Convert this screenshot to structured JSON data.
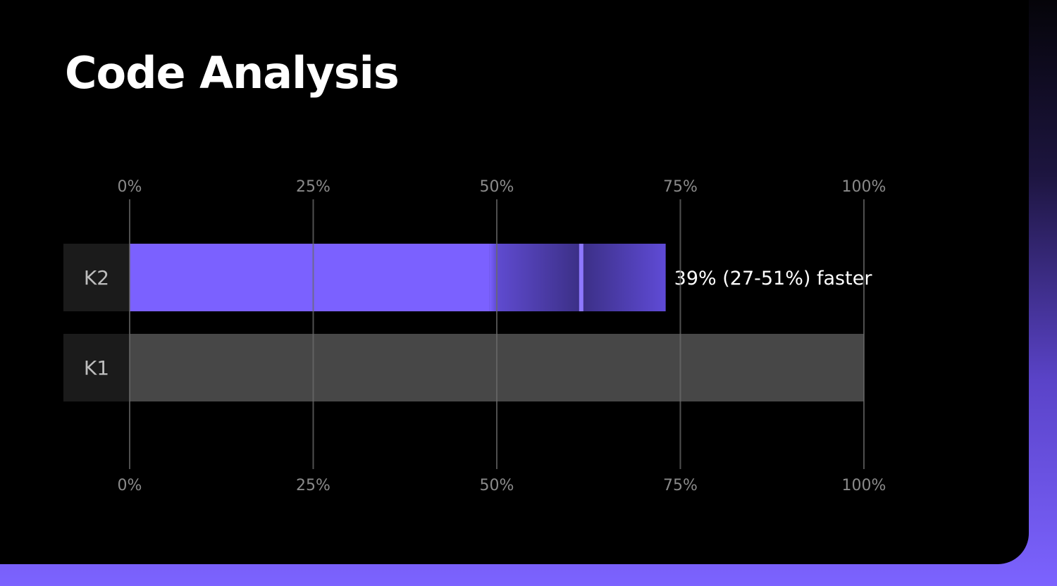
{
  "title": "Code Analysis",
  "chart_data": {
    "type": "bar",
    "orientation": "horizontal",
    "title": "Code Analysis",
    "categories": [
      "K2",
      "K1"
    ],
    "values": [
      73,
      100
    ],
    "xlim": [
      0,
      100
    ],
    "ticks": [
      "0%",
      "25%",
      "50%",
      "75%",
      "100%"
    ],
    "tick_values": [
      0,
      25,
      50,
      75,
      100
    ],
    "ticks_shown": "top and bottom",
    "grid": true,
    "uncertainty": {
      "category": "K2",
      "low": 49,
      "point": 61.5,
      "high": 73
    },
    "annotation": {
      "category": "K2",
      "text": "39% (27-51%) faster"
    },
    "colors": {
      "K2": "#7b61ff",
      "K1": "#474747",
      "label_bg": "#1b1b1b",
      "uncertainty_dark": "#3b2f85",
      "marker": "#8e78ff",
      "grid": "#6a6a6a"
    }
  }
}
